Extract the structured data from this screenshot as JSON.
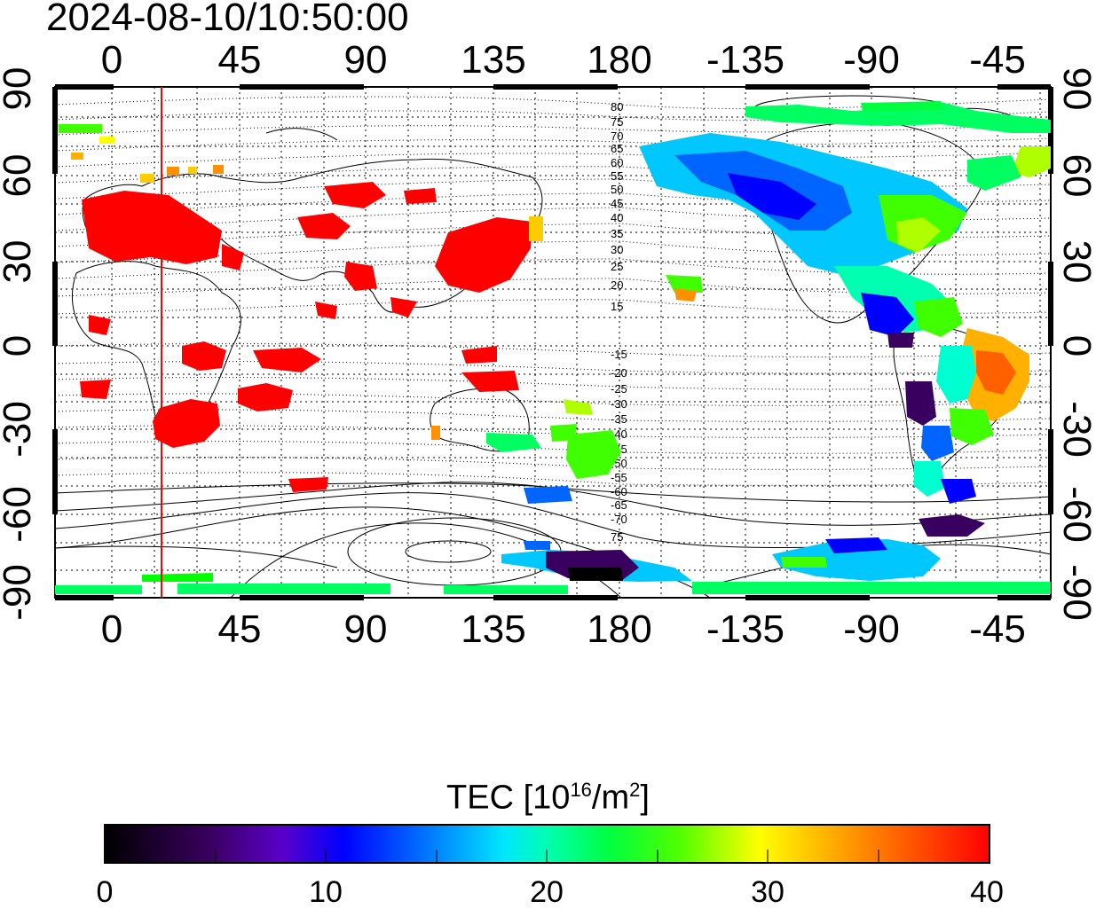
{
  "title": "2024-08-10/10:50:00",
  "map": {
    "top_ticks": [
      "0",
      "45",
      "90",
      "135",
      "180",
      "-135",
      "-90",
      "-45"
    ],
    "bottom_ticks": [
      "0",
      "45",
      "90",
      "135",
      "180",
      "-135",
      "-90",
      "-45"
    ],
    "left_ticks": [
      "90",
      "60",
      "30",
      "0",
      "-30",
      "-60",
      "-90"
    ],
    "right_ticks": [
      "90",
      "60",
      "30",
      "0",
      "-30",
      "-60",
      "-90"
    ],
    "contour_labels_north": [
      "80",
      "75",
      "70",
      "65",
      "60",
      "55",
      "50",
      "45",
      "40",
      "35",
      "30",
      "25",
      "20",
      "15"
    ],
    "contour_labels_south": [
      "-15",
      "-20",
      "-25",
      "-30",
      "-35",
      "-40",
      "-45",
      "-50",
      "-55",
      "-60",
      "-65",
      "-70",
      "75"
    ],
    "colors": {
      "grid": "#000000",
      "coast": "#000000",
      "terminator": "#ff0000"
    }
  },
  "colorbar": {
    "title_prefix": "TEC  [10",
    "title_sup1": "16",
    "title_mid": "/m",
    "title_sup2": "2",
    "title_suffix": "]",
    "ticks": [
      "0",
      "10",
      "20",
      "30",
      "40"
    ],
    "range": [
      0,
      40
    ],
    "colors": [
      "#000000",
      "#3a0060",
      "#5a00c8",
      "#0000ff",
      "#0064ff",
      "#00c8ff",
      "#00ffd0",
      "#00ff60",
      "#40ff00",
      "#b0ff00",
      "#ffff00",
      "#ffb000",
      "#ff6000",
      "#ff2000",
      "#ff0000"
    ]
  }
}
